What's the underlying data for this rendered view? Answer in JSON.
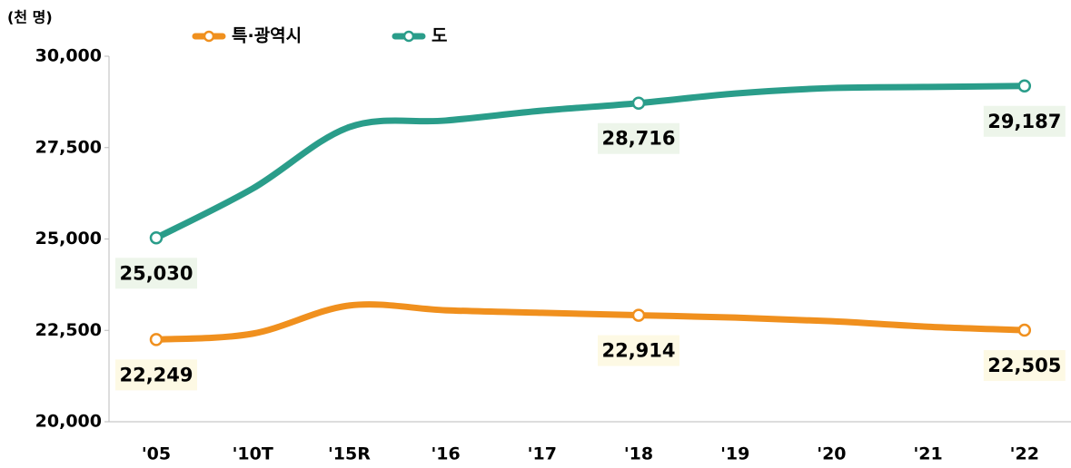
{
  "chart_data": {
    "type": "line",
    "unit_label": "(천 명)",
    "categories": [
      "'05",
      "'10T",
      "'15R",
      "'16",
      "'17",
      "'18",
      "'19",
      "'20",
      "'21",
      "'22"
    ],
    "series": [
      {
        "name": "특·광역시",
        "color": "#f0901e",
        "label_color": "#c4532b",
        "label_bg": "#fdf9e4",
        "values": [
          22249,
          22410,
          23180,
          23050,
          22980,
          22914,
          22850,
          22750,
          22600,
          22505
        ],
        "value_labels": [
          "22,249",
          null,
          null,
          null,
          null,
          "22,914",
          null,
          null,
          null,
          "22,505"
        ]
      },
      {
        "name": "도",
        "color": "#2a9d8a",
        "label_color": "#17706a",
        "label_bg": "#edf5ea",
        "values": [
          25030,
          26380,
          28060,
          28240,
          28510,
          28716,
          28980,
          29130,
          29160,
          29187
        ],
        "value_labels": [
          "25,030",
          null,
          null,
          null,
          null,
          "28,716",
          null,
          null,
          null,
          "29,187"
        ]
      }
    ],
    "ylim": [
      20000,
      30000
    ],
    "yticks": [
      {
        "value": 20000,
        "label": "20,000"
      },
      {
        "value": 22500,
        "label": "22,500"
      },
      {
        "value": 25000,
        "label": "25,000"
      },
      {
        "value": 27500,
        "label": "27,500"
      },
      {
        "value": 30000,
        "label": "30,000"
      }
    ],
    "grid": false,
    "legend": "top"
  }
}
